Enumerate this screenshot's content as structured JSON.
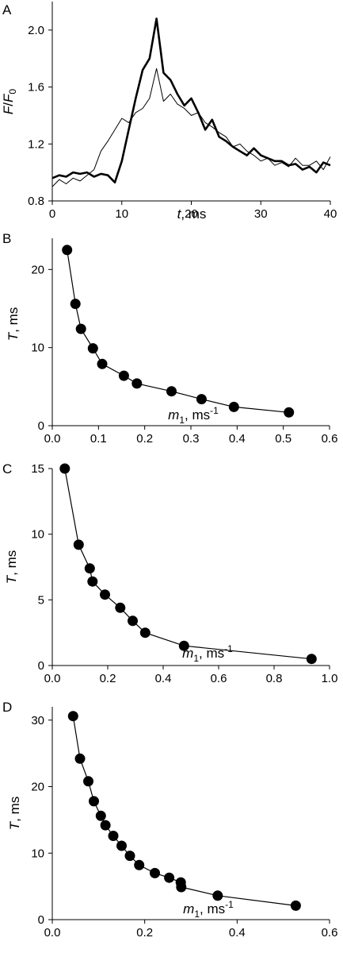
{
  "chart_data": [
    {
      "panel": "A",
      "type": "line",
      "xlabel_italic": "t",
      "xlabel_rest": ", ms",
      "ylabel_parts": [
        "F",
        "/",
        "F",
        "0"
      ],
      "xlim": [
        0,
        40
      ],
      "ylim": [
        0.8,
        2.2
      ],
      "xticks": [
        "0",
        "10",
        "20",
        "30",
        "40"
      ],
      "yticks": [
        "0.8",
        "1.2",
        "1.6",
        "2.0"
      ],
      "series": [
        {
          "style": "thick",
          "x": [
            0,
            1,
            2,
            3,
            4,
            5,
            6,
            7,
            8,
            9,
            10,
            11,
            12,
            13,
            14,
            15,
            16,
            17,
            18,
            19,
            20,
            21,
            22,
            23,
            24,
            25,
            26,
            27,
            28,
            29,
            30,
            31,
            32,
            33,
            34,
            35,
            36,
            37,
            38,
            39,
            40
          ],
          "y": [
            0.96,
            0.98,
            0.97,
            1.0,
            0.99,
            1.0,
            0.97,
            0.99,
            0.98,
            0.93,
            1.08,
            1.3,
            1.52,
            1.72,
            1.8,
            2.08,
            1.7,
            1.65,
            1.55,
            1.47,
            1.52,
            1.42,
            1.3,
            1.37,
            1.25,
            1.22,
            1.18,
            1.15,
            1.12,
            1.17,
            1.12,
            1.1,
            1.08,
            1.08,
            1.05,
            1.06,
            1.02,
            1.04,
            1.0,
            1.07,
            1.05
          ]
        },
        {
          "style": "thin",
          "x": [
            0,
            1,
            2,
            3,
            4,
            5,
            6,
            7,
            8,
            9,
            10,
            11,
            12,
            13,
            14,
            15,
            16,
            17,
            18,
            19,
            20,
            21,
            22,
            23,
            24,
            25,
            26,
            27,
            28,
            29,
            30,
            31,
            32,
            33,
            34,
            35,
            36,
            37,
            38,
            39,
            40
          ],
          "y": [
            0.9,
            0.95,
            0.92,
            0.96,
            0.94,
            0.98,
            1.02,
            1.15,
            1.22,
            1.3,
            1.38,
            1.35,
            1.42,
            1.45,
            1.52,
            1.73,
            1.5,
            1.55,
            1.48,
            1.45,
            1.4,
            1.42,
            1.35,
            1.32,
            1.28,
            1.25,
            1.18,
            1.2,
            1.15,
            1.12,
            1.08,
            1.1,
            1.05,
            1.07,
            1.04,
            1.1,
            1.05,
            1.05,
            1.08,
            1.02,
            1.11
          ]
        }
      ]
    },
    {
      "panel": "B",
      "type": "scatter",
      "xlabel_italic": "m",
      "xlabel_sub": "1",
      "xlabel_rest": ", ms",
      "xlabel_sup": "-1",
      "ylabel_italic": "T",
      "ylabel_rest": ", ms",
      "xlim": [
        0,
        0.6
      ],
      "ylim": [
        0,
        24
      ],
      "xticks": [
        "0.0",
        "0.1",
        "0.2",
        "0.3",
        "0.4",
        "0.5",
        "0.6"
      ],
      "yticks": [
        "0",
        "10",
        "20"
      ],
      "x": [
        0.032,
        0.05,
        0.062,
        0.088,
        0.108,
        0.155,
        0.183,
        0.258,
        0.323,
        0.393,
        0.512
      ],
      "y": [
        22.5,
        15.6,
        12.4,
        9.9,
        7.9,
        6.4,
        5.4,
        4.4,
        3.4,
        2.4,
        1.7
      ]
    },
    {
      "panel": "C",
      "type": "scatter",
      "xlabel_italic": "m",
      "xlabel_sub": "1",
      "xlabel_rest": ", ms",
      "xlabel_sup": "-1",
      "ylabel_italic": "T",
      "ylabel_rest": ", ms",
      "xlim": [
        0,
        1.0
      ],
      "ylim": [
        0,
        15
      ],
      "xticks": [
        "0.0",
        "0.2",
        "0.4",
        "0.6",
        "0.8",
        "1.0"
      ],
      "yticks": [
        "0",
        "5",
        "10",
        "15"
      ],
      "x": [
        0.045,
        0.095,
        0.135,
        0.145,
        0.19,
        0.245,
        0.29,
        0.335,
        0.475,
        0.935
      ],
      "y": [
        15.0,
        9.2,
        7.4,
        6.4,
        5.4,
        4.4,
        3.4,
        2.5,
        1.5,
        0.5
      ]
    },
    {
      "panel": "D",
      "type": "scatter",
      "xlabel_italic": "m",
      "xlabel_sub": "1",
      "xlabel_rest": ", ms",
      "xlabel_sup": "-1",
      "ylabel_italic": "T",
      "ylabel_rest": ", ms",
      "xlim": [
        0,
        0.6
      ],
      "ylim": [
        0,
        32
      ],
      "xticks": [
        "0.0",
        "0.2",
        "0.4",
        "0.6"
      ],
      "yticks": [
        "0",
        "10",
        "20",
        "30"
      ],
      "x": [
        0.045,
        0.06,
        0.078,
        0.09,
        0.105,
        0.115,
        0.132,
        0.15,
        0.168,
        0.188,
        0.222,
        0.253,
        0.278,
        0.279,
        0.358,
        0.527
      ],
      "y": [
        30.6,
        24.2,
        20.8,
        17.8,
        15.6,
        14.2,
        12.6,
        11.1,
        9.6,
        8.2,
        7.0,
        6.3,
        5.6,
        4.9,
        3.6,
        2.1
      ]
    }
  ]
}
